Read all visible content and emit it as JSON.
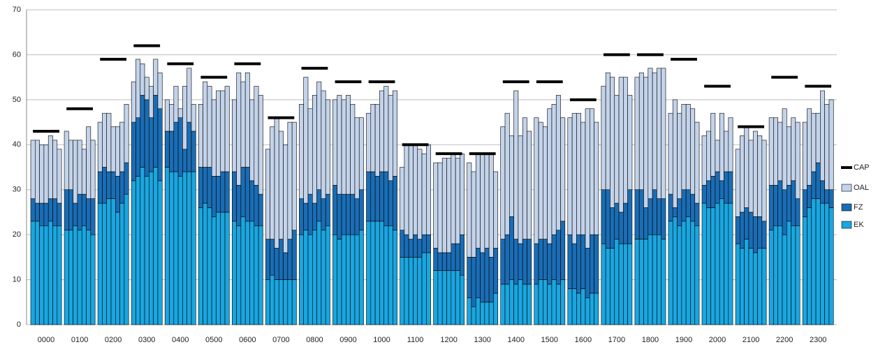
{
  "chart_data": {
    "type": "bar",
    "stacked": true,
    "categories": [
      null,
      null,
      null,
      "0000",
      null,
      null,
      null,
      null,
      null,
      null,
      "0100",
      null,
      null,
      null,
      null,
      null,
      null,
      "0200",
      null,
      null,
      null,
      null,
      null,
      null,
      "0300",
      null,
      null,
      null,
      null,
      null,
      null,
      "0400",
      null,
      null,
      null,
      null,
      null,
      null,
      "0500",
      null,
      null,
      null,
      null,
      null,
      null,
      "0600",
      null,
      null,
      null,
      null,
      null,
      null,
      "0700",
      null,
      null,
      null,
      null,
      null,
      null,
      "0800",
      null,
      null,
      null,
      null,
      null,
      null,
      "0900",
      null,
      null,
      null,
      null,
      null,
      null,
      "1000",
      null,
      null,
      null,
      null,
      null,
      null,
      "1100",
      null,
      null,
      null,
      null,
      null,
      null,
      "1200",
      null,
      null,
      null,
      null,
      null,
      null,
      "1300",
      null,
      null,
      null,
      null,
      null,
      null,
      "1400",
      null,
      null,
      null,
      null,
      null,
      null,
      "1500",
      null,
      null,
      null,
      null,
      null,
      null,
      "1600",
      null,
      null,
      null,
      null,
      null,
      null,
      "1700",
      null,
      null,
      null,
      null,
      null,
      null,
      "1800",
      null,
      null,
      null,
      null,
      null,
      null,
      "1900",
      null,
      null,
      null,
      null,
      null,
      null,
      "2000",
      null,
      null,
      null,
      null,
      null,
      null,
      "2100",
      null,
      null,
      null,
      null,
      null,
      null,
      "2200",
      null,
      null,
      null,
      null,
      null,
      null,
      "2300",
      null,
      null,
      null
    ],
    "series": [
      {
        "name": "EK",
        "color": "#1aa6e0",
        "values": [
          23,
          23,
          22,
          22,
          23,
          22,
          22,
          21,
          21,
          22,
          21,
          22,
          21,
          20,
          27,
          27,
          28,
          28,
          25,
          27,
          29,
          32,
          33,
          35,
          33,
          34,
          35,
          32,
          35,
          34,
          34,
          33,
          34,
          34,
          34,
          26,
          27,
          26,
          24,
          25,
          25,
          25,
          23,
          22,
          24,
          23,
          23,
          22,
          22,
          10,
          11,
          10,
          10,
          10,
          10,
          10,
          20,
          21,
          20,
          21,
          23,
          21,
          22,
          20,
          19,
          20,
          20,
          20,
          20,
          21,
          23,
          23,
          23,
          23,
          22,
          22,
          21,
          15,
          15,
          15,
          15,
          15,
          16,
          16,
          12,
          12,
          12,
          12,
          12,
          12,
          11,
          6,
          4,
          6,
          5,
          5,
          5,
          7,
          9,
          9,
          10,
          9,
          10,
          9,
          9,
          9,
          10,
          10,
          9,
          10,
          9,
          10,
          8,
          8,
          7,
          8,
          6,
          7,
          7,
          18,
          17,
          17,
          19,
          18,
          18,
          18,
          19,
          19,
          19,
          20,
          20,
          20,
          19,
          23,
          24,
          22,
          23,
          24,
          23,
          22,
          27,
          26,
          26,
          27,
          28,
          27,
          27,
          18,
          17,
          19,
          17,
          16,
          17,
          17,
          21,
          22,
          22,
          20,
          23,
          22,
          22,
          24,
          26,
          28,
          28,
          27,
          27,
          26
        ]
      },
      {
        "name": "FZ",
        "color": "#1a6db5",
        "values": [
          5,
          4,
          5,
          5,
          5,
          6,
          5,
          9,
          9,
          5,
          8,
          7,
          7,
          8,
          7,
          8,
          6,
          6,
          8,
          7,
          7,
          13,
          13,
          16,
          17,
          12,
          16,
          16,
          8,
          9,
          11,
          13,
          5,
          11,
          9,
          9,
          8,
          9,
          9,
          8,
          9,
          9,
          11,
          9,
          11,
          12,
          9,
          9,
          7,
          9,
          8,
          7,
          9,
          6,
          9,
          11,
          8,
          6,
          9,
          6,
          7,
          7,
          7,
          11,
          10,
          9,
          9,
          9,
          8,
          9,
          11,
          11,
          10,
          11,
          12,
          10,
          12,
          6,
          5,
          4,
          5,
          4,
          4,
          4,
          5,
          4,
          4,
          4,
          6,
          6,
          9,
          9,
          11,
          11,
          11,
          12,
          10,
          10,
          10,
          11,
          14,
          10,
          8,
          10,
          10,
          9,
          9,
          9,
          9,
          10,
          12,
          13,
          12,
          10,
          13,
          12,
          11,
          13,
          13,
          12,
          13,
          9,
          8,
          7,
          9,
          12,
          11,
          11,
          7,
          8,
          10,
          8,
          9,
          6,
          2,
          6,
          7,
          6,
          6,
          5,
          4,
          6,
          7,
          7,
          4,
          7,
          7,
          6,
          8,
          7,
          8,
          8,
          7,
          6,
          10,
          9,
          10,
          10,
          8,
          10,
          6,
          6,
          5,
          6,
          8,
          5,
          3,
          4
        ]
      },
      {
        "name": "OAL",
        "color": "#c3d3ea",
        "values": [
          13,
          14,
          13,
          13,
          14,
          13,
          12,
          13,
          11,
          14,
          12,
          10,
          16,
          13,
          11,
          12,
          13,
          10,
          11,
          11,
          13,
          9,
          13,
          7,
          5,
          7,
          8,
          8,
          7,
          6,
          8,
          2,
          14,
          12,
          6,
          14,
          19,
          18,
          17,
          19,
          18,
          19,
          16,
          25,
          19,
          21,
          18,
          22,
          22,
          20,
          25,
          29,
          24,
          24,
          26,
          24,
          21,
          28,
          19,
          24,
          24,
          24,
          21,
          19,
          22,
          21,
          22,
          20,
          18,
          16,
          13,
          15,
          16,
          18,
          19,
          19,
          19,
          14,
          20,
          21,
          20,
          20,
          18,
          20,
          19,
          20,
          21,
          21,
          20,
          19,
          18,
          21,
          19,
          21,
          22,
          21,
          23,
          17,
          25,
          27,
          18,
          33,
          24,
          27,
          24,
          28,
          26,
          25,
          30,
          29,
          30,
          23,
          26,
          29,
          27,
          25,
          31,
          28,
          25,
          23,
          26,
          29,
          24,
          30,
          28,
          21,
          25,
          26,
          29,
          29,
          26,
          29,
          29,
          18,
          24,
          19,
          19,
          19,
          19,
          18,
          11,
          11,
          14,
          7,
          15,
          9,
          12,
          15,
          17,
          18,
          16,
          19,
          18,
          18,
          15,
          15,
          13,
          18,
          13,
          14,
          17,
          15,
          17,
          13,
          11,
          20,
          19,
          20
        ]
      },
      {
        "name": "CAP",
        "type": "line",
        "color": "#000000",
        "values": [
          43,
          43,
          43,
          43,
          43,
          43,
          43,
          48,
          48,
          48,
          48,
          48,
          48,
          48,
          59,
          59,
          59,
          59,
          59,
          59,
          59,
          62,
          62,
          62,
          62,
          62,
          62,
          62,
          58,
          58,
          58,
          58,
          58,
          58,
          58,
          55,
          55,
          55,
          55,
          55,
          55,
          55,
          58,
          58,
          58,
          58,
          58,
          58,
          58,
          46,
          46,
          46,
          46,
          46,
          46,
          46,
          57,
          57,
          57,
          57,
          57,
          57,
          57,
          54,
          54,
          54,
          54,
          54,
          54,
          54,
          54,
          54,
          54,
          54,
          54,
          54,
          54,
          40,
          40,
          40,
          40,
          40,
          40,
          40,
          38,
          38,
          38,
          38,
          38,
          38,
          38,
          38,
          38,
          38,
          38,
          38,
          38,
          38,
          54,
          54,
          54,
          54,
          54,
          54,
          54,
          54,
          54,
          54,
          54,
          54,
          54,
          54,
          50,
          50,
          50,
          50,
          50,
          50,
          50,
          60,
          60,
          60,
          60,
          60,
          60,
          60,
          60,
          60,
          60,
          60,
          60,
          60,
          60,
          59,
          59,
          59,
          59,
          59,
          59,
          59,
          53,
          53,
          53,
          53,
          53,
          53,
          53,
          44,
          44,
          44,
          44,
          44,
          44,
          44,
          55,
          55,
          55,
          55,
          55,
          55,
          55,
          53,
          53,
          53,
          53,
          53,
          53,
          53
        ]
      }
    ],
    "ylim": [
      0,
      70
    ],
    "yticks": [
      0,
      10,
      20,
      30,
      40,
      50,
      60,
      70
    ],
    "grid": true,
    "legend": "right"
  }
}
